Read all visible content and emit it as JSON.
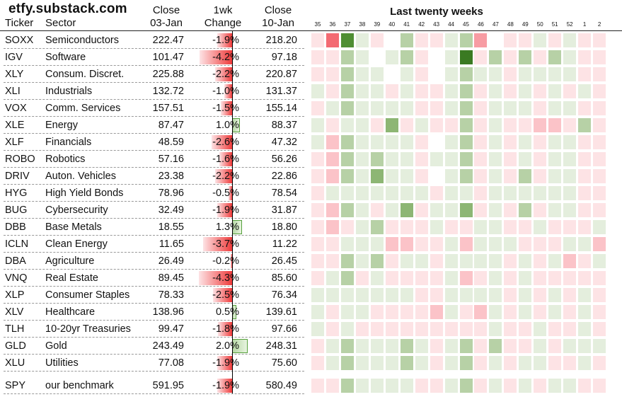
{
  "brand": "etfy.substack.com",
  "headers": {
    "ticker": "Ticker",
    "sector": "Sector",
    "close1_line1": "Close",
    "close1_line2": "03-Jan",
    "change_line1": "1wk",
    "change_line2": "Change",
    "close2_line1": "Close",
    "close2_line2": "10-Jan",
    "heatmap_title": "Last twenty weeks"
  },
  "colors": {
    "negative": "#ef3b3b",
    "positive": "#55a03c",
    "neutral": "#ffffff"
  },
  "chart_data": {
    "type": "heatmap",
    "title": "Last twenty weeks",
    "weeks": [
      "35",
      "36",
      "37",
      "38",
      "39",
      "40",
      "41",
      "42",
      "43",
      "44",
      "45",
      "46",
      "47",
      "48",
      "49",
      "50",
      "51",
      "52",
      "1",
      "2"
    ],
    "rows": [
      {
        "ticker": "SOXX",
        "sector": "Semiconductors",
        "close_prev": "222.47",
        "change": "-1.9%",
        "change_value": -1.9,
        "close_now": "218.20",
        "weekly": [
          -1,
          -4,
          4,
          1,
          -1,
          0,
          2,
          -1,
          -1,
          1,
          2,
          -3,
          0,
          -1,
          -1,
          1,
          -1,
          1,
          -1,
          -1
        ]
      },
      {
        "ticker": "IGV",
        "sector": "Software",
        "close_prev": "101.47",
        "change": "-4.2%",
        "change_value": -4.2,
        "close_now": "97.18",
        "weekly": [
          -1,
          -1,
          2,
          1,
          0,
          1,
          2,
          -1,
          0,
          1,
          5,
          -1,
          2,
          -1,
          2,
          -1,
          2,
          1,
          -1,
          -1
        ]
      },
      {
        "ticker": "XLY",
        "sector": "Consum. Discret.",
        "close_prev": "225.88",
        "change": "-2.2%",
        "change_value": -2.2,
        "close_now": "220.87",
        "weekly": [
          -1,
          -1,
          2,
          1,
          1,
          0,
          1,
          -1,
          0,
          1,
          2,
          1,
          1,
          -1,
          1,
          1,
          1,
          1,
          -1,
          -1
        ]
      },
      {
        "ticker": "XLI",
        "sector": "Industrials",
        "close_prev": "132.72",
        "change": "-1.0%",
        "change_value": -1.0,
        "close_now": "131.37",
        "weekly": [
          1,
          -1,
          2,
          1,
          1,
          -1,
          1,
          -1,
          -1,
          1,
          2,
          -1,
          1,
          -1,
          1,
          -1,
          1,
          -1,
          1,
          -1
        ]
      },
      {
        "ticker": "VOX",
        "sector": "Comm. Services",
        "close_prev": "157.51",
        "change": "-1.5%",
        "change_value": -1.5,
        "close_now": "155.14",
        "weekly": [
          -1,
          1,
          2,
          1,
          1,
          1,
          1,
          -1,
          -1,
          1,
          2,
          -1,
          1,
          1,
          1,
          -1,
          1,
          1,
          -1,
          -1
        ]
      },
      {
        "ticker": "XLE",
        "sector": "Energy",
        "close_prev": "87.47",
        "change": "1.0%",
        "change_value": 1.0,
        "close_now": "88.37",
        "weekly": [
          1,
          -1,
          1,
          1,
          -1,
          3,
          -1,
          1,
          -1,
          -1,
          2,
          -1,
          1,
          -1,
          -1,
          -2,
          -2,
          -1,
          2,
          -1
        ]
      },
      {
        "ticker": "XLF",
        "sector": "Financials",
        "close_prev": "48.59",
        "change": "-2.6%",
        "change_value": -2.6,
        "close_now": "47.32",
        "weekly": [
          1,
          -2,
          2,
          1,
          1,
          1,
          1,
          -1,
          0,
          1,
          2,
          -1,
          1,
          -1,
          1,
          -1,
          1,
          1,
          -1,
          -1
        ]
      },
      {
        "ticker": "ROBO",
        "sector": "Robotics",
        "close_prev": "57.16",
        "change": "-1.6%",
        "change_value": -1.6,
        "close_now": "56.26",
        "weekly": [
          -1,
          -2,
          2,
          1,
          2,
          1,
          1,
          -1,
          1,
          1,
          2,
          -1,
          1,
          -1,
          1,
          -1,
          1,
          1,
          -1,
          -1
        ]
      },
      {
        "ticker": "DRIV",
        "sector": "Auton. Vehicles",
        "close_prev": "23.38",
        "change": "-2.2%",
        "change_value": -2.2,
        "close_now": "22.86",
        "weekly": [
          -1,
          -2,
          2,
          1,
          3,
          1,
          1,
          -1,
          0,
          1,
          2,
          -1,
          1,
          -1,
          2,
          -1,
          1,
          1,
          -1,
          -1
        ]
      },
      {
        "ticker": "HYG",
        "sector": "High Yield Bonds",
        "close_prev": "78.96",
        "change": "-0.5%",
        "change_value": -0.5,
        "close_now": "78.54",
        "weekly": [
          -1,
          1,
          1,
          1,
          1,
          1,
          1,
          1,
          -1,
          1,
          1,
          -1,
          1,
          1,
          1,
          1,
          1,
          1,
          -1,
          -1
        ]
      },
      {
        "ticker": "BUG",
        "sector": "Cybersecurity",
        "close_prev": "32.49",
        "change": "-1.9%",
        "change_value": -1.9,
        "close_now": "31.87",
        "weekly": [
          -1,
          -2,
          2,
          1,
          -1,
          1,
          3,
          -1,
          1,
          1,
          3,
          -1,
          1,
          -1,
          2,
          -1,
          1,
          1,
          -1,
          -1
        ]
      },
      {
        "ticker": "DBB",
        "sector": "Base Metals",
        "close_prev": "18.55",
        "change": "1.3%",
        "change_value": 1.3,
        "close_now": "18.80",
        "weekly": [
          -1,
          -2,
          -1,
          1,
          2,
          -1,
          -1,
          -1,
          1,
          -1,
          -1,
          1,
          1,
          -1,
          -1,
          1,
          -1,
          -1,
          -1,
          1
        ]
      },
      {
        "ticker": "ICLN",
        "sector": "Clean Energy",
        "close_prev": "11.65",
        "change": "-3.7%",
        "change_value": -3.7,
        "close_now": "11.22",
        "weekly": [
          -1,
          -1,
          1,
          1,
          1,
          -2,
          -2,
          -1,
          -1,
          1,
          -2,
          1,
          1,
          1,
          -1,
          -1,
          -1,
          1,
          1,
          -2
        ]
      },
      {
        "ticker": "DBA",
        "sector": "Agriculture",
        "close_prev": "26.49",
        "change": "-0.2%",
        "change_value": -0.2,
        "close_now": "26.45",
        "weekly": [
          -1,
          -1,
          2,
          1,
          2,
          -1,
          1,
          1,
          -1,
          1,
          1,
          1,
          1,
          -1,
          1,
          -1,
          1,
          -2,
          -1,
          1
        ]
      },
      {
        "ticker": "VNQ",
        "sector": "Real Estate",
        "close_prev": "89.45",
        "change": "-4.3%",
        "change_value": -4.3,
        "close_now": "85.60",
        "weekly": [
          -1,
          1,
          2,
          -1,
          1,
          -1,
          -1,
          -1,
          -1,
          1,
          -2,
          -1,
          1,
          -1,
          1,
          -1,
          -1,
          -1,
          -1,
          -1
        ]
      },
      {
        "ticker": "XLP",
        "sector": "Consumer Staples",
        "close_prev": "78.33",
        "change": "-2.5%",
        "change_value": -2.5,
        "close_now": "76.34",
        "weekly": [
          1,
          1,
          1,
          1,
          1,
          1,
          1,
          -1,
          -1,
          1,
          1,
          1,
          1,
          -1,
          1,
          -1,
          1,
          -1,
          1,
          -1
        ]
      },
      {
        "ticker": "XLV",
        "sector": "Healthcare",
        "close_prev": "138.96",
        "change": "0.5%",
        "change_value": 0.5,
        "close_now": "139.61",
        "weekly": [
          1,
          -1,
          1,
          1,
          -1,
          -1,
          -1,
          -1,
          -2,
          1,
          -1,
          -2,
          1,
          -1,
          1,
          -1,
          1,
          -1,
          1,
          -1
        ]
      },
      {
        "ticker": "TLH",
        "sector": "10-20yr Treasuries",
        "close_prev": "99.47",
        "change": "-1.8%",
        "change_value": -1.8,
        "close_now": "97.66",
        "weekly": [
          1,
          -1,
          1,
          -1,
          -1,
          -1,
          -1,
          -1,
          -1,
          -1,
          -1,
          -1,
          1,
          -1,
          -1,
          1,
          -1,
          -1,
          1,
          -1
        ]
      },
      {
        "ticker": "GLD",
        "sector": "Gold",
        "close_prev": "243.49",
        "change": "2.0%",
        "change_value": 2.0,
        "close_now": "248.31",
        "weekly": [
          -1,
          1,
          2,
          1,
          1,
          1,
          2,
          1,
          -1,
          1,
          2,
          -1,
          2,
          -1,
          -1,
          1,
          -1,
          1,
          1,
          1
        ]
      },
      {
        "ticker": "XLU",
        "sector": "Utilities",
        "close_prev": "77.08",
        "change": "-1.9%",
        "change_value": -1.9,
        "close_now": "75.60",
        "weekly": [
          -1,
          1,
          2,
          1,
          1,
          1,
          2,
          1,
          -1,
          1,
          2,
          -1,
          1,
          -1,
          1,
          1,
          -1,
          -1,
          1,
          -1
        ]
      },
      {
        "ticker": "SPY",
        "sector": "our benchmark",
        "close_prev": "591.95",
        "change": "-1.9%",
        "change_value": -1.9,
        "close_now": "580.49",
        "weekly": [
          -1,
          -1,
          2,
          1,
          1,
          1,
          1,
          -1,
          -1,
          1,
          2,
          -1,
          1,
          -1,
          1,
          -1,
          1,
          1,
          -1,
          -1
        ]
      }
    ]
  }
}
